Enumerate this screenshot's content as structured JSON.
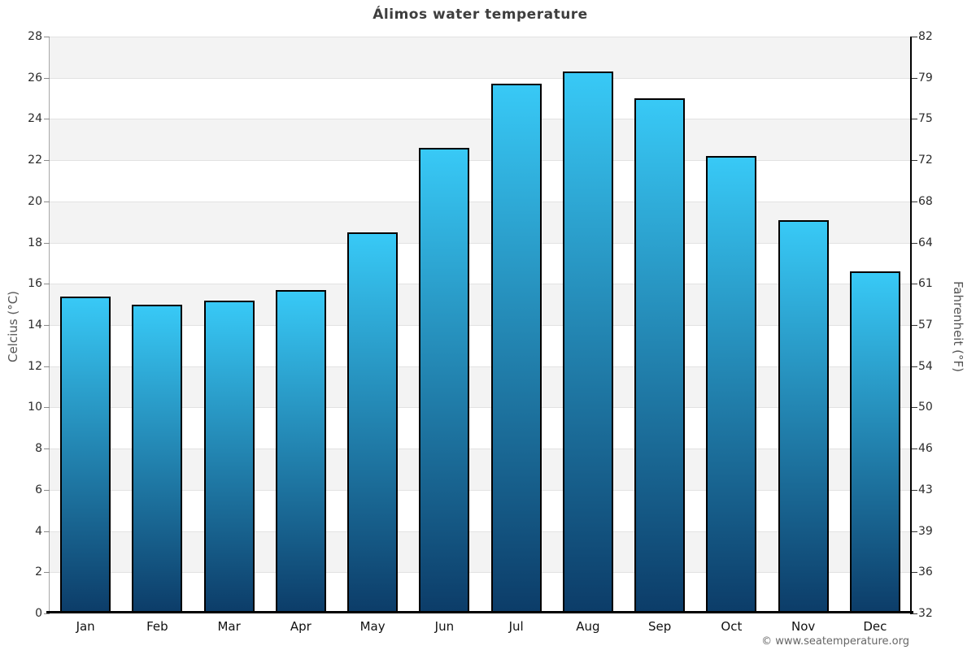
{
  "title": "Álimos water temperature",
  "axes": {
    "left_label": "Celcius (°C)",
    "right_label": "Fahrenheit (°F)",
    "celsius_ticks": [
      0,
      2,
      4,
      6,
      8,
      10,
      12,
      14,
      16,
      18,
      20,
      22,
      24,
      26,
      28
    ],
    "fahrenheit_ticks": [
      32,
      36,
      39,
      43,
      46,
      50,
      54,
      57,
      61,
      64,
      68,
      72,
      75,
      79,
      82
    ]
  },
  "chart_data": {
    "type": "bar",
    "title": "Álimos water temperature",
    "categories": [
      "Jan",
      "Feb",
      "Mar",
      "Apr",
      "May",
      "Jun",
      "Jul",
      "Aug",
      "Sep",
      "Oct",
      "Nov",
      "Dec"
    ],
    "values": [
      15.4,
      15.0,
      15.2,
      15.7,
      18.5,
      22.6,
      25.7,
      26.3,
      25.0,
      22.2,
      19.1,
      16.6
    ],
    "xlabel": "",
    "ylabel": "Celcius (°C)",
    "y2label": "Fahrenheit (°F)",
    "ylim": [
      0,
      28
    ],
    "y2lim": [
      32,
      82
    ],
    "grid": "horizontal alternating bands every 2°C",
    "legend_position": "none"
  },
  "footer": {
    "copyright": "© www.seatemperature.org"
  },
  "colors": {
    "bar_gradient_top": "#38c9f6",
    "bar_gradient_bottom": "#0c3c68",
    "bar_border": "#000000",
    "band_gray": "#f3f3f3",
    "band_white": "#ffffff",
    "gridline": "#e2e2e2",
    "axis_line": "#000000",
    "spine_gray": "#a8a8a8",
    "title_text": "#3e3e3e",
    "tick_text": "#2b2b2b",
    "axis_label_text": "#555555",
    "copyright_text": "#666666"
  }
}
